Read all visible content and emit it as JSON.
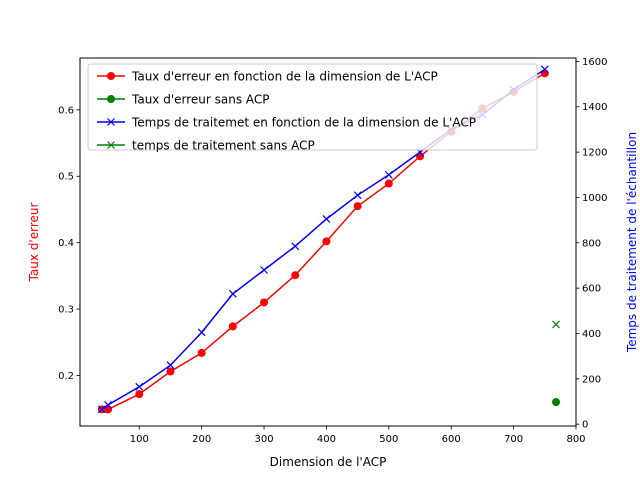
{
  "chart_data": {
    "type": "line",
    "xlabel": "Dimension de l'ACP",
    "ylabel_left": "Taux d'erreur",
    "ylabel_right": "Temps de traitement de l'échantillon",
    "ylabel_left_color": "#ff0000",
    "ylabel_right_color": "#0000ff",
    "xlim": [
      5,
      800
    ],
    "ylim_left": [
      0.124,
      0.678
    ],
    "ylim_right": [
      -8,
      1615
    ],
    "xticks": [
      100,
      200,
      300,
      400,
      500,
      600,
      700,
      800
    ],
    "yticks_left": [
      0.2,
      0.3,
      0.4,
      0.5,
      0.6
    ],
    "yticks_right": [
      0,
      200,
      400,
      600,
      800,
      1000,
      1200,
      1400,
      1600
    ],
    "legend_position": "upper-left",
    "series": [
      {
        "name": "Taux d'erreur en fonction de la dimension de L'ACP",
        "axis": "left",
        "color": "#ff0000",
        "marker": "circle",
        "line": true,
        "x": [
          40,
          50,
          100,
          150,
          200,
          250,
          300,
          350,
          400,
          450,
          500,
          550,
          600,
          650,
          700,
          750
        ],
        "y": [
          0.149,
          0.149,
          0.172,
          0.206,
          0.234,
          0.274,
          0.31,
          0.351,
          0.402,
          0.455,
          0.489,
          0.53,
          0.567,
          0.602,
          0.627,
          0.655
        ]
      },
      {
        "name": "Taux d'erreur sans ACP",
        "axis": "left",
        "color": "#008000",
        "marker": "circle",
        "line": false,
        "x": [
          768
        ],
        "y": [
          0.16
        ]
      },
      {
        "name": "Temps de traitemet en fonction de la dimension de L'ACP",
        "axis": "right",
        "color": "#0000ff",
        "marker": "x",
        "line": true,
        "x": [
          40,
          50,
          100,
          150,
          200,
          250,
          300,
          350,
          400,
          450,
          500,
          550,
          600,
          650,
          700,
          750
        ],
        "y": [
          65,
          85,
          165,
          260,
          405,
          575,
          680,
          785,
          905,
          1010,
          1100,
          1200,
          1300,
          1365,
          1475,
          1565
        ]
      },
      {
        "name": "temps de traitement sans ACP",
        "axis": "right",
        "color": "#008000",
        "marker": "x",
        "line": false,
        "x": [
          768
        ],
        "y": [
          440
        ]
      }
    ]
  }
}
